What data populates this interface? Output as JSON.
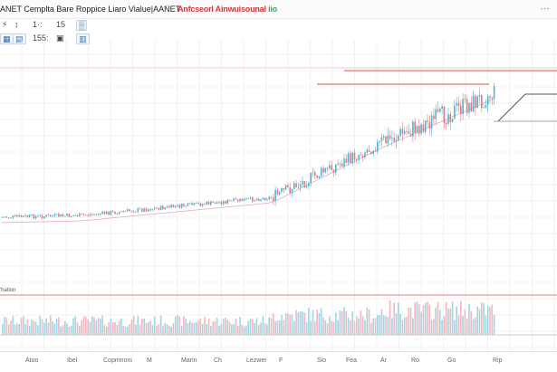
{
  "header": {
    "title": "ANET Cemplta Bare Roppice Liaro Vialue|AANET",
    "star_icon": "star-icon",
    "tabs_text": "Anfcseorl Ainwuisounal",
    "tabs_tail": "iio",
    "dots_icon": "more-dots-icon"
  },
  "toolbar": {
    "items": [
      "⚡",
      "↕",
      "1·:",
      "15",
      "▒"
    ],
    "second_row": [
      "▦",
      "▤",
      "155:",
      "▣",
      "▥"
    ]
  },
  "volume_label": "'hation",
  "xaxis": {
    "labels": [
      "Atoo",
      "Ibel",
      "Copmnoni",
      "M",
      "Marin",
      "Ch",
      "Lezwer",
      "F",
      "Sio",
      "Fea",
      "Ar",
      "Ro",
      "Go",
      "Rip"
    ]
  },
  "colors": {
    "up": "#4fb5c7",
    "down": "#e07a8a",
    "ref_line": "#d9534f",
    "avg_line": "#e6a8b5"
  }
}
